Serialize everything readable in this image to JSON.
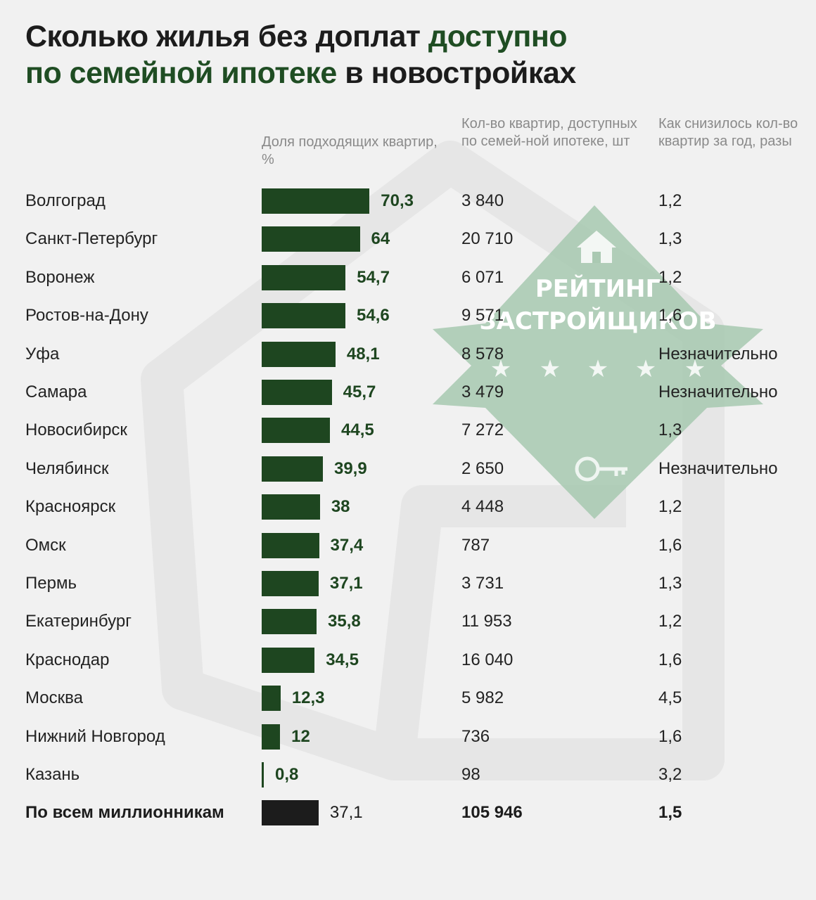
{
  "title": {
    "part1": "Сколько жилья без доплат ",
    "part2": "доступно",
    "part3": "по семейной ипотеке",
    "part4": " в новостройках"
  },
  "watermark": {
    "line1": "РЕЙТИНГ",
    "line2": "ЗАСТРОЙЩИКОВ",
    "icons": [
      "house-icon",
      "star-icon",
      "key-icon"
    ],
    "color": "#a9c9b2"
  },
  "columns": {
    "share": "Доля подходящих квартир, %",
    "count": "Кол-во квартир, доступных по семей-ной ипотеке, шт",
    "decline": "Как снизилось кол-во квартир за год, разы"
  },
  "colors": {
    "bar": "#1e4620",
    "total_bar": "#1c1c1c",
    "accent": "#1f4d23",
    "background": "#f1f1f1"
  },
  "chart_data": {
    "type": "bar",
    "orientation": "horizontal",
    "xlim": [
      0,
      100
    ],
    "categories": [
      "Волгоград",
      "Санкт-Петербург",
      "Воронеж",
      "Ростов-на-Дону",
      "Уфа",
      "Самара",
      "Новосибирск",
      "Челябинск",
      "Красноярск",
      "Омск",
      "Пермь",
      "Екатеринбург",
      "Краснодар",
      "Москва",
      "Нижний Новгород",
      "Казань",
      "По всем миллионникам"
    ],
    "values": [
      70.3,
      64,
      54.7,
      54.6,
      48.1,
      45.7,
      44.5,
      39.9,
      38,
      37.4,
      37.1,
      35.8,
      34.5,
      12.3,
      12,
      0.8,
      37.1
    ],
    "value_labels": [
      "70,3",
      "64",
      "54,7",
      "54,6",
      "48,1",
      "45,7",
      "44,5",
      "39,9",
      "38",
      "37,4",
      "37,1",
      "35,8",
      "34,5",
      "12,3",
      "12",
      "0,8",
      "37,1"
    ],
    "counts": [
      "3 840",
      "20 710",
      "6 071",
      "9 571",
      "8 578",
      "3 479",
      "7 272",
      "2 650",
      "4 448",
      "787",
      "3 731",
      "11 953",
      "16 040",
      "5 982",
      "736",
      "98",
      "105 946"
    ],
    "declines": [
      "1,2",
      "1,3",
      "1,2",
      "1,6",
      "Незначительно",
      "Незначительно",
      "1,3",
      "Незначительно",
      "1,2",
      "1,6",
      "1,3",
      "1,2",
      "1,6",
      "4,5",
      "1,6",
      "3,2",
      "1,5"
    ],
    "grid": false,
    "legend": "none"
  }
}
